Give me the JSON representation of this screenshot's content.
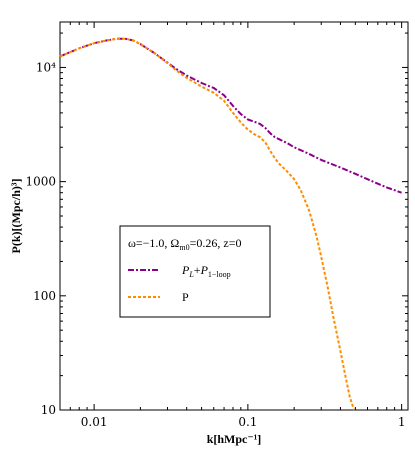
{
  "chart_data": {
    "type": "line",
    "xlabel": "k[hMpc⁻¹]",
    "ylabel": "P(k)[(Mpc/h)³]",
    "x_scale": "log",
    "y_scale": "log",
    "xlim": [
      0.006,
      1.1
    ],
    "ylim": [
      10,
      25000
    ],
    "x_ticks": [
      {
        "value": 0.01,
        "label": "0.01"
      },
      {
        "value": 0.1,
        "label": "0.1"
      },
      {
        "value": 1,
        "label": "1"
      }
    ],
    "y_ticks": [
      {
        "value": 10,
        "label": "10"
      },
      {
        "value": 100,
        "label": "100"
      },
      {
        "value": 1000,
        "label": "1000"
      },
      {
        "value": 10000,
        "label": "10⁴"
      }
    ],
    "legend": {
      "title": "ω=−1.0, Ωm0=0.26, z=0",
      "title_parts": {
        "a": "ω=−1.0, Ω",
        "sub": "m0",
        "b": "=0.26, z=0"
      },
      "placement": "center-left"
    },
    "series": [
      {
        "name": "P_L+P_1−loop",
        "label_parts": {
          "a": "P",
          "a_sub": "L",
          "plus": "+",
          "b": "P",
          "b_sub": "1−loop"
        },
        "color": "#8B008B",
        "dash": "6,2,2,2",
        "x": [
          0.006,
          0.008,
          0.01,
          0.012,
          0.014,
          0.016,
          0.018,
          0.02,
          0.025,
          0.03,
          0.035,
          0.04,
          0.05,
          0.06,
          0.07,
          0.08,
          0.09,
          0.1,
          0.11,
          0.12,
          0.13,
          0.14,
          0.15,
          0.16,
          0.18,
          0.2,
          0.25,
          0.3,
          0.4,
          0.5,
          0.6,
          0.7,
          0.8,
          1.0
        ],
        "y": [
          12500,
          14700,
          16300,
          17200,
          17800,
          17800,
          17200,
          16000,
          13200,
          11000,
          9500,
          8500,
          7300,
          6600,
          5700,
          4600,
          3900,
          3500,
          3350,
          3200,
          2950,
          2650,
          2450,
          2350,
          2180,
          2000,
          1750,
          1550,
          1330,
          1170,
          1050,
          960,
          890,
          800
        ]
      },
      {
        "name": "P",
        "label_parts": {
          "a": "P"
        },
        "color": "#FF8C00",
        "dash": "3,2",
        "x": [
          0.006,
          0.008,
          0.01,
          0.012,
          0.014,
          0.016,
          0.018,
          0.02,
          0.025,
          0.03,
          0.035,
          0.04,
          0.05,
          0.06,
          0.07,
          0.08,
          0.09,
          0.1,
          0.11,
          0.12,
          0.13,
          0.14,
          0.15,
          0.16,
          0.18,
          0.2,
          0.22,
          0.25,
          0.28,
          0.3,
          0.33,
          0.36,
          0.4,
          0.43,
          0.46,
          0.49
        ],
        "y": [
          12500,
          14700,
          16300,
          17200,
          17800,
          17800,
          17200,
          16000,
          13200,
          10900,
          9200,
          8100,
          6800,
          6000,
          5100,
          4000,
          3300,
          2850,
          2600,
          2450,
          2200,
          1850,
          1600,
          1430,
          1230,
          1050,
          850,
          560,
          330,
          220,
          120,
          65,
          33,
          20,
          13,
          10
        ]
      }
    ]
  }
}
